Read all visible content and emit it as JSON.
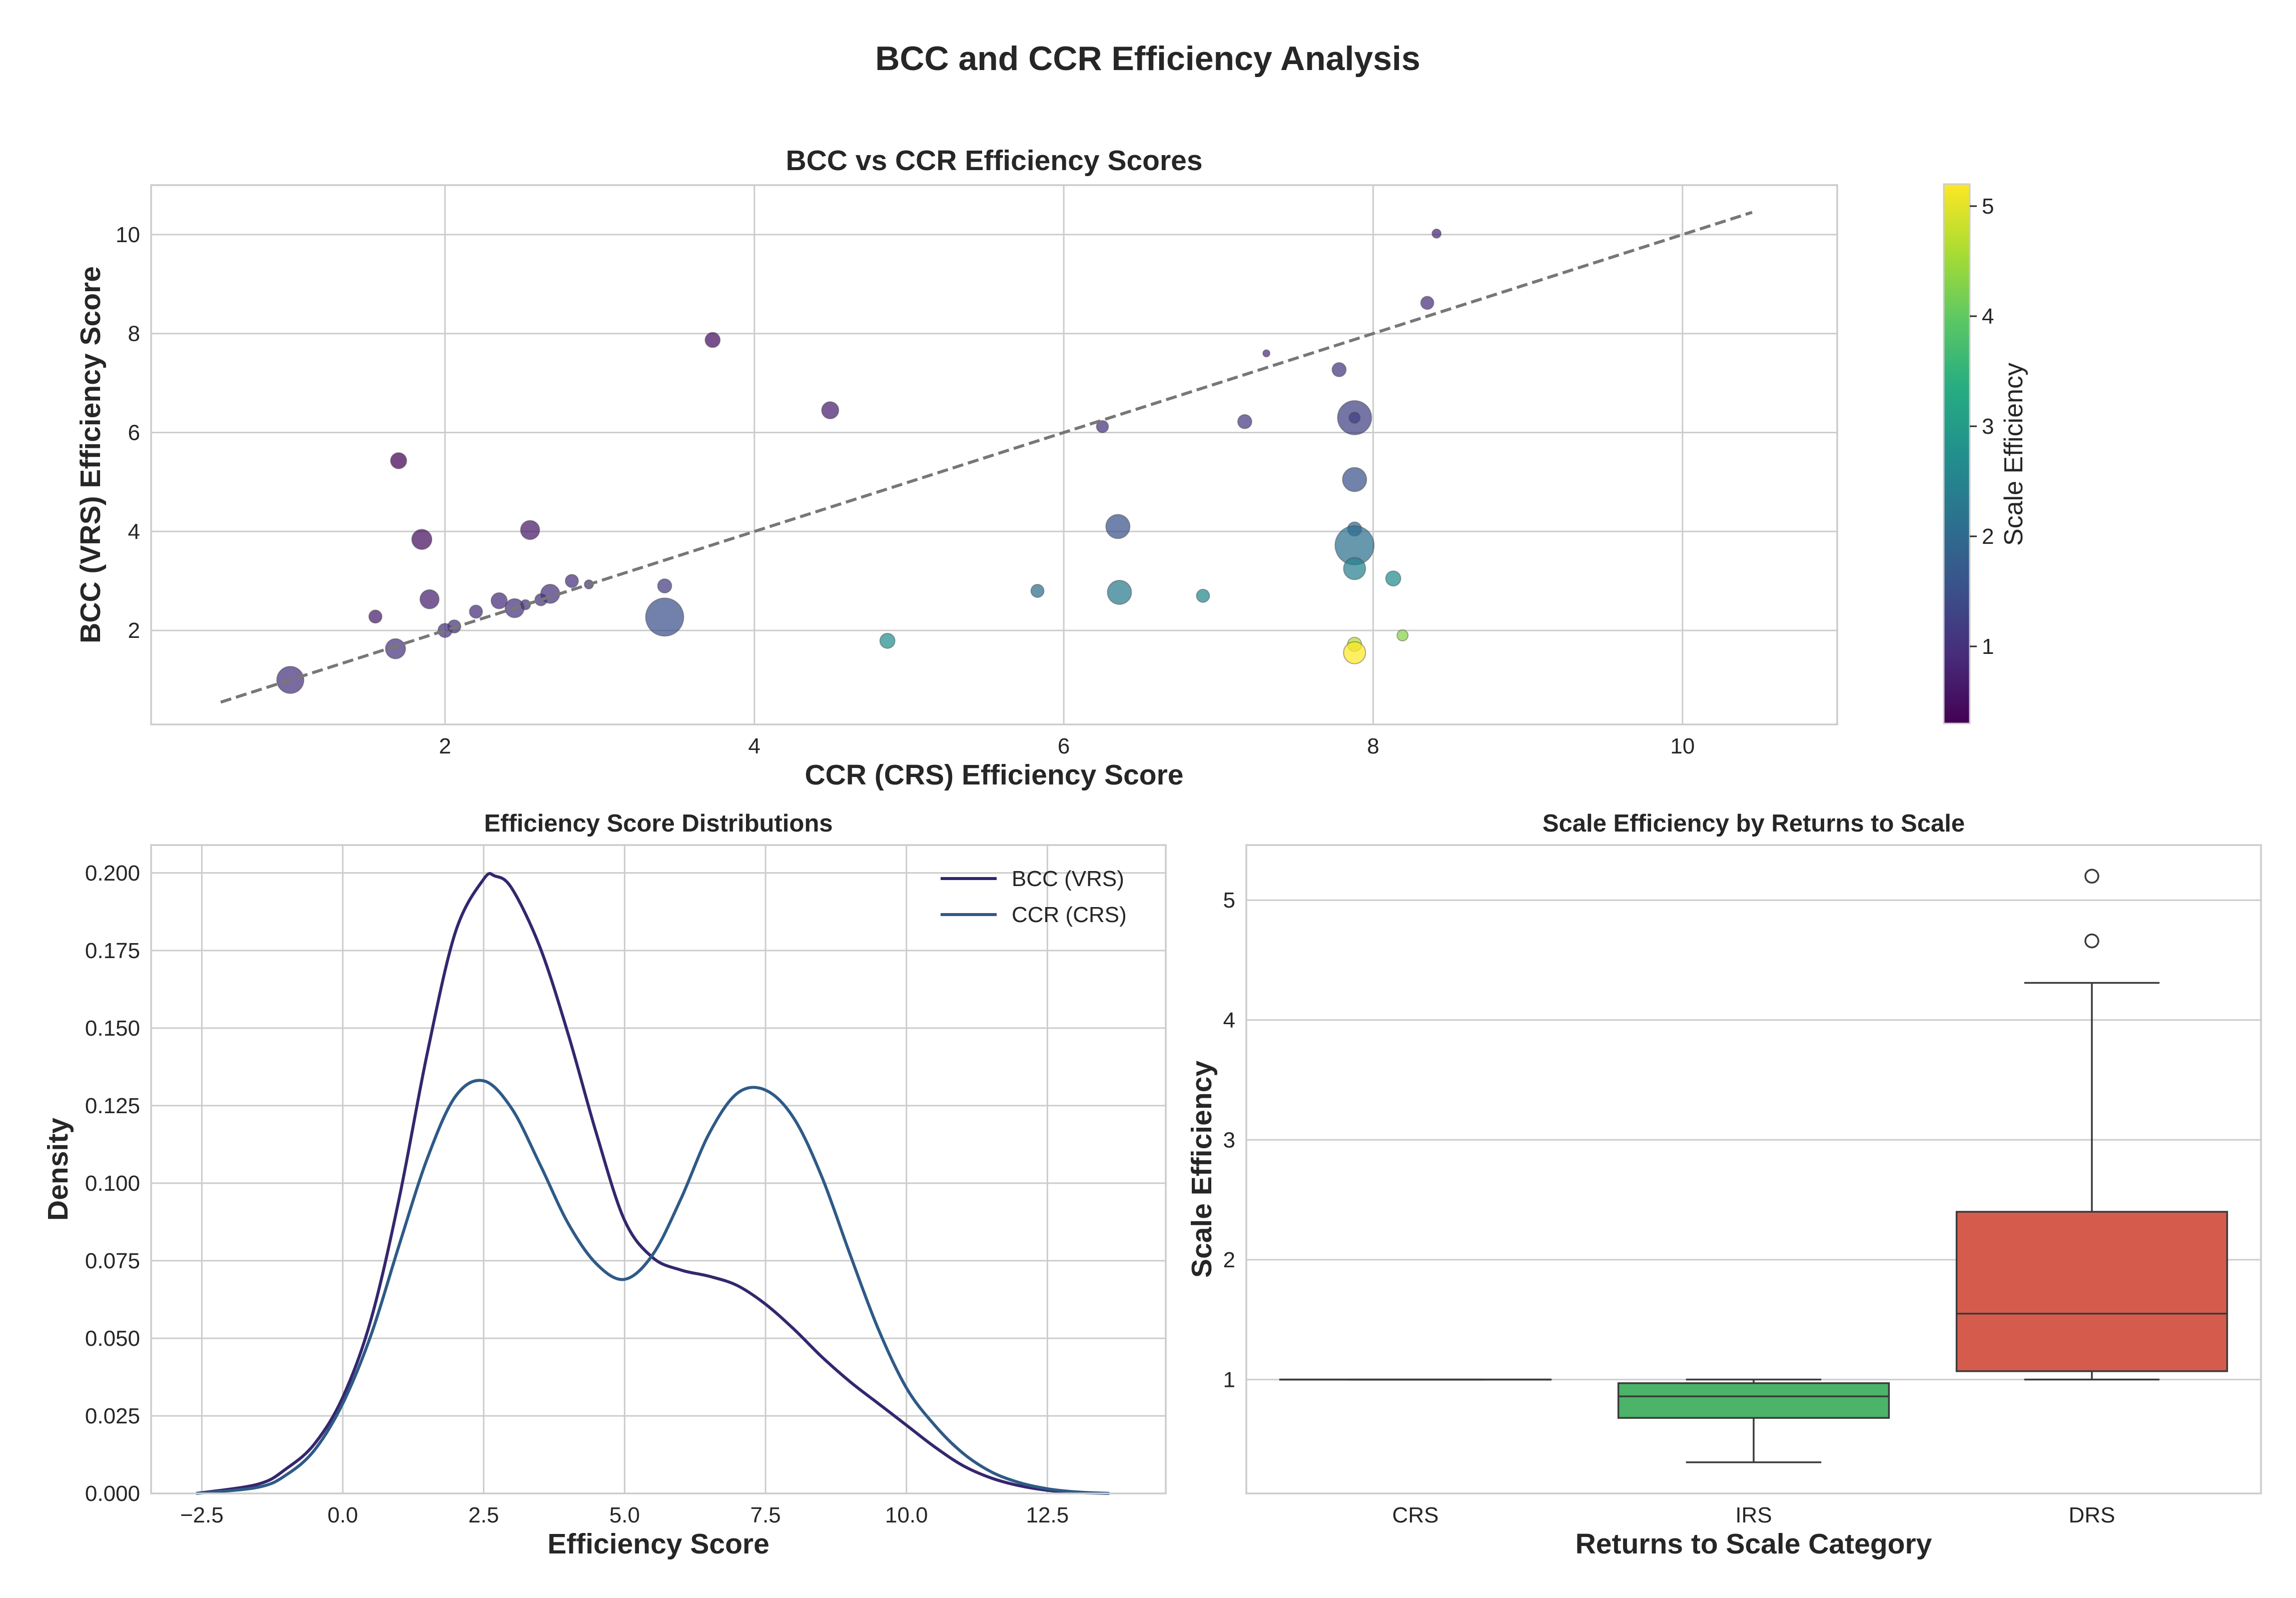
{
  "figure_title": "BCC and CCR Efficiency Analysis",
  "chart_data": [
    {
      "type": "scatter",
      "title": "BCC vs CCR Efficiency Scores",
      "xlabel": "CCR (CRS) Efficiency Score",
      "ylabel": "BCC (VRS) Efficiency Score",
      "xlim": [
        0.1,
        11.0
      ],
      "ylim": [
        0.1,
        11.0
      ],
      "xticks": [
        "2",
        "4",
        "6",
        "8",
        "10"
      ],
      "yticks": [
        "2",
        "4",
        "6",
        "8",
        "10"
      ],
      "grid": true,
      "colormap": "viridis",
      "colorbar": {
        "label": "Scale Efficiency",
        "range": [
          0.3,
          5.2
        ],
        "ticks": [
          "1",
          "2",
          "3",
          "4",
          "5"
        ]
      },
      "reference_line": {
        "style": "dashed",
        "color": "#777777",
        "x": [
          0.55,
          10.45
        ],
        "y": [
          0.55,
          10.45
        ]
      },
      "points": [
        {
          "x": 1.0,
          "y": 1.0,
          "scale_efficiency": 1.0,
          "size": 2.3
        },
        {
          "x": 1.55,
          "y": 2.28,
          "scale_efficiency": 0.68,
          "size": 0.9
        },
        {
          "x": 1.68,
          "y": 1.63,
          "scale_efficiency": 1.03,
          "size": 1.6
        },
        {
          "x": 1.7,
          "y": 5.43,
          "scale_efficiency": 0.31,
          "size": 1.2
        },
        {
          "x": 1.85,
          "y": 3.84,
          "scale_efficiency": 0.48,
          "size": 1.6
        },
        {
          "x": 1.9,
          "y": 2.63,
          "scale_efficiency": 0.72,
          "size": 1.5
        },
        {
          "x": 2.0,
          "y": 2.0,
          "scale_efficiency": 1.0,
          "size": 1.0
        },
        {
          "x": 2.06,
          "y": 2.08,
          "scale_efficiency": 0.99,
          "size": 0.9
        },
        {
          "x": 2.2,
          "y": 2.38,
          "scale_efficiency": 0.92,
          "size": 0.9
        },
        {
          "x": 2.35,
          "y": 2.6,
          "scale_efficiency": 0.9,
          "size": 1.2
        },
        {
          "x": 2.45,
          "y": 2.45,
          "scale_efficiency": 1.0,
          "size": 1.5
        },
        {
          "x": 2.52,
          "y": 2.52,
          "scale_efficiency": 1.0,
          "size": 0.6
        },
        {
          "x": 2.55,
          "y": 4.03,
          "scale_efficiency": 0.63,
          "size": 1.5
        },
        {
          "x": 2.62,
          "y": 2.62,
          "scale_efficiency": 1.0,
          "size": 0.8
        },
        {
          "x": 2.68,
          "y": 2.74,
          "scale_efficiency": 0.98,
          "size": 1.5
        },
        {
          "x": 2.82,
          "y": 3.0,
          "scale_efficiency": 0.94,
          "size": 0.9
        },
        {
          "x": 2.93,
          "y": 2.93,
          "scale_efficiency": 1.0,
          "size": 0.5
        },
        {
          "x": 3.42,
          "y": 2.9,
          "scale_efficiency": 1.18,
          "size": 1.0
        },
        {
          "x": 3.42,
          "y": 2.27,
          "scale_efficiency": 1.51,
          "size": 3.4
        },
        {
          "x": 3.73,
          "y": 7.87,
          "scale_efficiency": 0.47,
          "size": 1.1
        },
        {
          "x": 4.49,
          "y": 6.45,
          "scale_efficiency": 0.7,
          "size": 1.3
        },
        {
          "x": 4.86,
          "y": 1.79,
          "scale_efficiency": 2.72,
          "size": 1.1
        },
        {
          "x": 5.83,
          "y": 2.8,
          "scale_efficiency": 2.08,
          "size": 0.9
        },
        {
          "x": 6.25,
          "y": 6.12,
          "scale_efficiency": 1.02,
          "size": 0.8
        },
        {
          "x": 6.35,
          "y": 4.1,
          "scale_efficiency": 1.55,
          "size": 2.0
        },
        {
          "x": 6.36,
          "y": 2.77,
          "scale_efficiency": 2.3,
          "size": 2.0
        },
        {
          "x": 6.9,
          "y": 2.7,
          "scale_efficiency": 2.56,
          "size": 0.9
        },
        {
          "x": 7.17,
          "y": 6.22,
          "scale_efficiency": 1.15,
          "size": 1.0
        },
        {
          "x": 7.31,
          "y": 7.6,
          "scale_efficiency": 0.96,
          "size": 0.3
        },
        {
          "x": 7.78,
          "y": 7.27,
          "scale_efficiency": 1.07,
          "size": 1.0
        },
        {
          "x": 7.88,
          "y": 6.3,
          "scale_efficiency": 1.25,
          "size": 3.0
        },
        {
          "x": 7.88,
          "y": 6.3,
          "scale_efficiency": 1.25,
          "size": 0.7
        },
        {
          "x": 7.88,
          "y": 5.05,
          "scale_efficiency": 1.56,
          "size": 2.0
        },
        {
          "x": 7.88,
          "y": 4.05,
          "scale_efficiency": 1.95,
          "size": 1.0
        },
        {
          "x": 7.88,
          "y": 3.72,
          "scale_efficiency": 2.12,
          "size": 3.5
        },
        {
          "x": 7.88,
          "y": 3.25,
          "scale_efficiency": 2.42,
          "size": 1.8
        },
        {
          "x": 7.88,
          "y": 1.72,
          "scale_efficiency": 4.66,
          "size": 1.0
        },
        {
          "x": 7.88,
          "y": 1.55,
          "scale_efficiency": 5.2,
          "size": 1.8
        },
        {
          "x": 8.13,
          "y": 3.05,
          "scale_efficiency": 2.67,
          "size": 1.1
        },
        {
          "x": 8.19,
          "y": 1.9,
          "scale_efficiency": 4.31,
          "size": 0.7
        },
        {
          "x": 8.35,
          "y": 8.62,
          "scale_efficiency": 0.97,
          "size": 0.9
        },
        {
          "x": 8.41,
          "y": 10.02,
          "scale_efficiency": 0.84,
          "size": 0.5
        }
      ]
    },
    {
      "type": "line",
      "title": "Efficiency Score Distributions",
      "xlabel": "Efficiency Score",
      "ylabel": "Density",
      "xlim": [
        -3.4,
        14.6
      ],
      "ylim": [
        0.0,
        0.209
      ],
      "xticks": [
        "−2.5",
        "0.0",
        "2.5",
        "5.0",
        "7.5",
        "10.0",
        "12.5"
      ],
      "yticks": [
        "0.000",
        "0.025",
        "0.050",
        "0.075",
        "0.100",
        "0.125",
        "0.150",
        "0.175",
        "0.200"
      ],
      "grid": true,
      "legend": "top-right",
      "series": [
        {
          "name": "BCC (VRS)",
          "color": "#35266e",
          "x": [
            -2.6,
            -1.5,
            -1.0,
            -0.5,
            0.0,
            0.5,
            1.0,
            1.5,
            2.0,
            2.5,
            2.7,
            3.0,
            3.5,
            4.0,
            4.5,
            5.0,
            5.5,
            6.0,
            6.5,
            7.0,
            7.5,
            8.0,
            8.5,
            9.0,
            9.5,
            10.0,
            10.5,
            11.0,
            11.5,
            12.0,
            12.5,
            13.0,
            13.6
          ],
          "y": [
            0.0,
            0.003,
            0.008,
            0.016,
            0.031,
            0.056,
            0.095,
            0.142,
            0.181,
            0.198,
            0.199,
            0.195,
            0.176,
            0.148,
            0.116,
            0.088,
            0.076,
            0.072,
            0.07,
            0.067,
            0.061,
            0.053,
            0.044,
            0.036,
            0.029,
            0.022,
            0.015,
            0.009,
            0.005,
            0.0025,
            0.001,
            0.0003,
            0.0
          ]
        },
        {
          "name": "CCR (CRS)",
          "color": "#2e5a87",
          "x": [
            -2.6,
            -1.5,
            -1.0,
            -0.5,
            0.0,
            0.5,
            1.0,
            1.5,
            2.0,
            2.5,
            3.0,
            3.5,
            4.0,
            4.5,
            5.0,
            5.5,
            6.0,
            6.5,
            7.0,
            7.5,
            8.0,
            8.5,
            9.0,
            9.5,
            10.0,
            10.5,
            11.0,
            11.5,
            12.0,
            12.5,
            13.0,
            13.6
          ],
          "y": [
            0.0,
            0.002,
            0.006,
            0.014,
            0.029,
            0.051,
            0.08,
            0.108,
            0.128,
            0.133,
            0.124,
            0.106,
            0.087,
            0.074,
            0.069,
            0.077,
            0.095,
            0.116,
            0.129,
            0.13,
            0.121,
            0.102,
            0.077,
            0.053,
            0.034,
            0.022,
            0.013,
            0.007,
            0.0035,
            0.0015,
            0.0005,
            0.0
          ]
        }
      ]
    },
    {
      "type": "box",
      "title": "Scale Efficiency by Returns to Scale",
      "xlabel": "Returns to Scale Category",
      "ylabel": "Scale Efficiency",
      "ylim": [
        0.05,
        5.46
      ],
      "yticks": [
        "1",
        "2",
        "3",
        "4",
        "5"
      ],
      "grid": true,
      "categories": [
        "CRS",
        "IRS",
        "DRS"
      ],
      "boxes": [
        {
          "category": "CRS",
          "color": "#3a3a3a",
          "whisker_low": 1.0,
          "q1": 1.0,
          "median": 1.0,
          "q3": 1.0,
          "whisker_high": 1.0,
          "outliers": []
        },
        {
          "category": "IRS",
          "color": "#4bb468",
          "whisker_low": 0.31,
          "q1": 0.68,
          "median": 0.86,
          "q3": 0.97,
          "whisker_high": 1.0,
          "outliers": []
        },
        {
          "category": "DRS",
          "color": "#d55c4c",
          "whisker_low": 1.0,
          "q1": 1.07,
          "median": 1.55,
          "q3": 2.4,
          "whisker_high": 4.31,
          "outliers": [
            4.66,
            5.2
          ]
        }
      ]
    }
  ]
}
